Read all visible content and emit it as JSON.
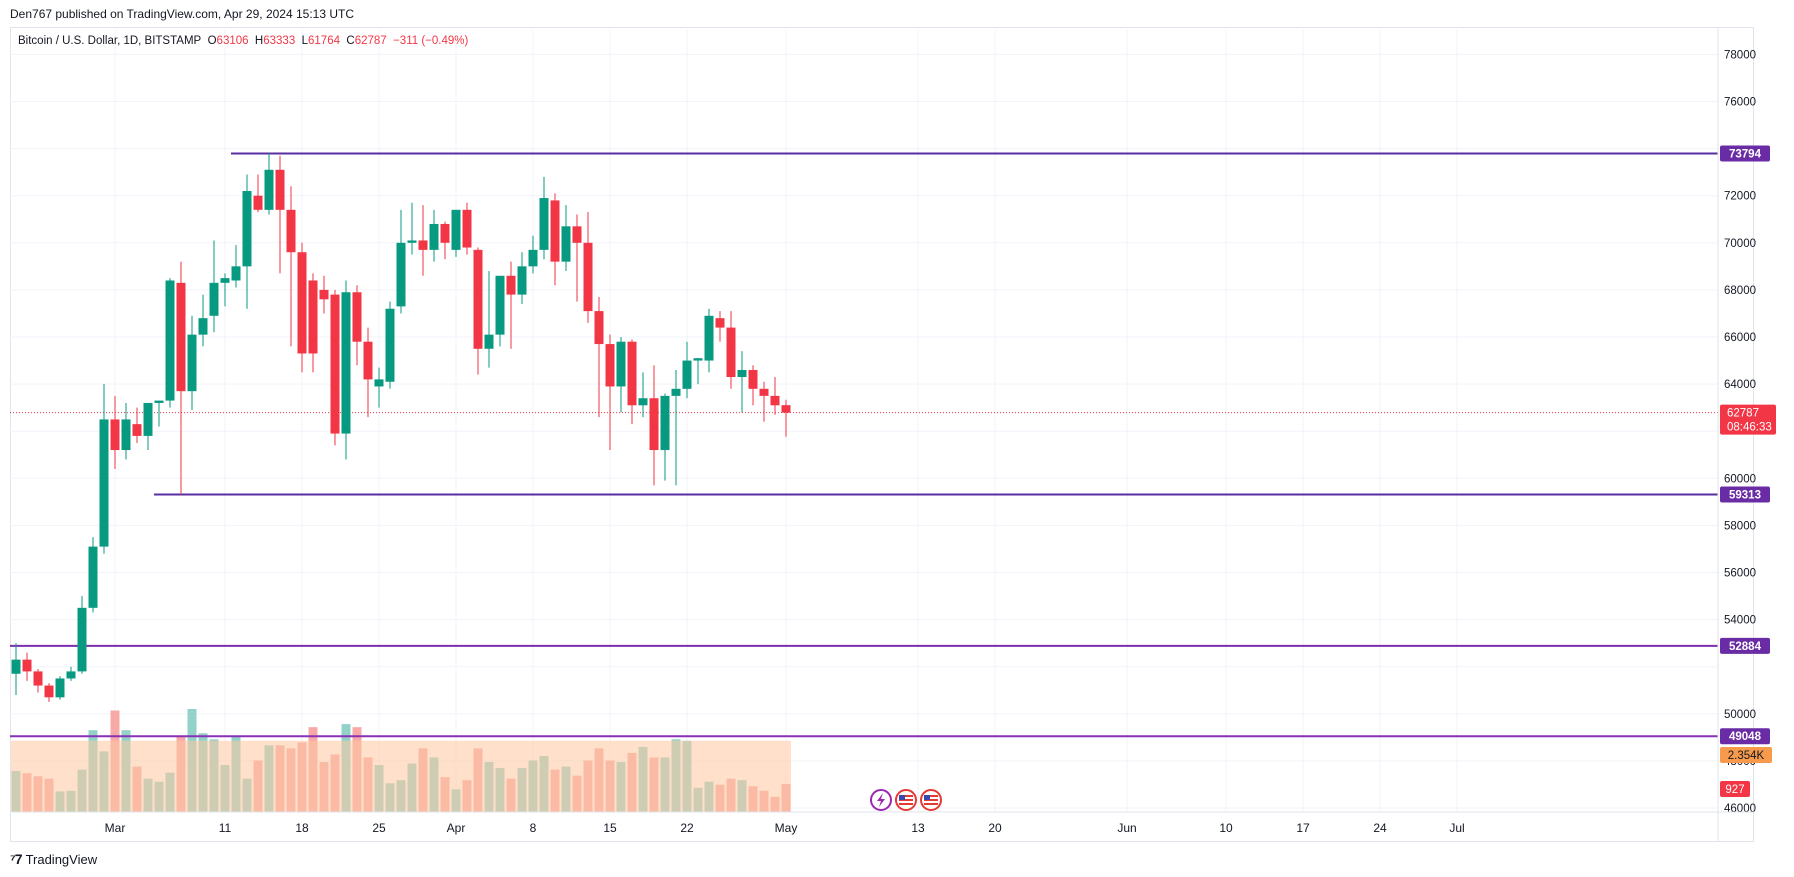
{
  "publish_line": "Den767 published on TradingView.com, Apr 29, 2024 15:13 UTC",
  "legend": {
    "symbol": "Bitcoin / U.S. Dollar, 1D, BITSTAMP",
    "o_label": "O",
    "o": "63106",
    "h_label": "H",
    "h": "63333",
    "l_label": "L",
    "l": "61764",
    "c_label": "C",
    "c": "62787",
    "change": "−311 (−0.49%)"
  },
  "colors": {
    "up": "#089981",
    "down": "#f23645",
    "up_volume": "#92d2c9",
    "down_volume": "#f7a9a7",
    "level_line": "#7e2bbf",
    "level_label_bg": "#6a2ca4",
    "volume_ma": "#ffc8a0",
    "grid": "#f0f3fa",
    "axis_text": "#131722"
  },
  "footer": {
    "brand": "TradingView"
  },
  "chart_data": {
    "type": "candlestick",
    "symbol": "Bitcoin / U.S. Dollar",
    "interval": "1D",
    "exchange": "BITSTAMP",
    "y_ticks": [
      46000,
      48000,
      50000,
      52000,
      54000,
      56000,
      58000,
      60000,
      62000,
      64000,
      66000,
      68000,
      70000,
      72000,
      74000,
      76000,
      78000
    ],
    "y_tick_labels": [
      "46000",
      "48000",
      "50000",
      "",
      "54000",
      "56000",
      "58000",
      "60000",
      "",
      "64000",
      "66000",
      "68000",
      "70000",
      "72000",
      "",
      "76000",
      "78000"
    ],
    "ylim": [
      45800,
      78800
    ],
    "x_ticks": [
      {
        "label": "Mar",
        "i": 9
      },
      {
        "label": "11",
        "i": 19
      },
      {
        "label": "18",
        "i": 26
      },
      {
        "label": "25",
        "i": 33
      },
      {
        "label": "Apr",
        "i": 40
      },
      {
        "label": "8",
        "i": 47
      },
      {
        "label": "15",
        "i": 54
      },
      {
        "label": "22",
        "i": 61
      },
      {
        "label": "May",
        "i": 70
      },
      {
        "label": "13",
        "i": 82
      },
      {
        "label": "20",
        "i": 89
      },
      {
        "label": "Jun",
        "i": 101
      },
      {
        "label": "10",
        "i": 110
      },
      {
        "label": "17",
        "i": 117
      },
      {
        "label": "24",
        "i": 124
      },
      {
        "label": "Jul",
        "i": 131
      }
    ],
    "candles": [
      {
        "o": 51700,
        "h": 53000,
        "l": 50800,
        "c": 52300
      },
      {
        "o": 52300,
        "h": 52600,
        "l": 51400,
        "c": 51800
      },
      {
        "o": 51800,
        "h": 51900,
        "l": 50900,
        "c": 51200
      },
      {
        "o": 51200,
        "h": 51300,
        "l": 50500,
        "c": 50700
      },
      {
        "o": 50700,
        "h": 51600,
        "l": 50600,
        "c": 51500
      },
      {
        "o": 51500,
        "h": 52000,
        "l": 51400,
        "c": 51800
      },
      {
        "o": 51800,
        "h": 55000,
        "l": 51700,
        "c": 54500
      },
      {
        "o": 54500,
        "h": 57500,
        "l": 54300,
        "c": 57100
      },
      {
        "o": 57100,
        "h": 64000,
        "l": 56800,
        "c": 62500
      },
      {
        "o": 62500,
        "h": 63500,
        "l": 60400,
        "c": 61200
      },
      {
        "o": 61200,
        "h": 63200,
        "l": 60800,
        "c": 62500
      },
      {
        "o": 62300,
        "h": 63000,
        "l": 61500,
        "c": 61800
      },
      {
        "o": 61800,
        "h": 63000,
        "l": 61200,
        "c": 63200
      },
      {
        "o": 63200,
        "h": 63300,
        "l": 62200,
        "c": 63300
      },
      {
        "o": 63300,
        "h": 68500,
        "l": 63000,
        "c": 68400
      },
      {
        "o": 68300,
        "h": 69200,
        "l": 59313,
        "c": 63700
      },
      {
        "o": 63700,
        "h": 66900,
        "l": 62900,
        "c": 66100
      },
      {
        "o": 66100,
        "h": 67800,
        "l": 65600,
        "c": 66800
      },
      {
        "o": 66900,
        "h": 70100,
        "l": 66200,
        "c": 68300
      },
      {
        "o": 68300,
        "h": 68700,
        "l": 67300,
        "c": 68500
      },
      {
        "o": 68400,
        "h": 69900,
        "l": 68100,
        "c": 69000
      },
      {
        "o": 69000,
        "h": 72900,
        "l": 67200,
        "c": 72200
      },
      {
        "o": 72000,
        "h": 72900,
        "l": 71300,
        "c": 71400
      },
      {
        "o": 71400,
        "h": 73794,
        "l": 71200,
        "c": 73100
      },
      {
        "o": 73100,
        "h": 73700,
        "l": 68700,
        "c": 71400
      },
      {
        "o": 71400,
        "h": 72400,
        "l": 65600,
        "c": 69600
      },
      {
        "o": 69600,
        "h": 70000,
        "l": 64500,
        "c": 65300
      },
      {
        "o": 68400,
        "h": 68700,
        "l": 64500,
        "c": 65300
      },
      {
        "o": 68000,
        "h": 68600,
        "l": 67000,
        "c": 67600
      },
      {
        "o": 67800,
        "h": 68000,
        "l": 61400,
        "c": 61900
      },
      {
        "o": 61900,
        "h": 68400,
        "l": 60800,
        "c": 67900
      },
      {
        "o": 67900,
        "h": 68200,
        "l": 64800,
        "c": 65800
      },
      {
        "o": 65800,
        "h": 66400,
        "l": 62600,
        "c": 64200
      },
      {
        "o": 63900,
        "h": 64700,
        "l": 63000,
        "c": 64200
      },
      {
        "o": 64100,
        "h": 67500,
        "l": 63800,
        "c": 67200
      },
      {
        "o": 67300,
        "h": 71400,
        "l": 67000,
        "c": 70000
      },
      {
        "o": 70000,
        "h": 71700,
        "l": 69500,
        "c": 70100
      },
      {
        "o": 70100,
        "h": 71600,
        "l": 68600,
        "c": 69700
      },
      {
        "o": 69700,
        "h": 71400,
        "l": 69200,
        "c": 70800
      },
      {
        "o": 70800,
        "h": 70900,
        "l": 69300,
        "c": 70000
      },
      {
        "o": 69700,
        "h": 71400,
        "l": 69400,
        "c": 71400
      },
      {
        "o": 71400,
        "h": 71700,
        "l": 69500,
        "c": 69800
      },
      {
        "o": 69700,
        "h": 69800,
        "l": 64400,
        "c": 65500
      },
      {
        "o": 65500,
        "h": 68800,
        "l": 64700,
        "c": 66100
      },
      {
        "o": 66100,
        "h": 68300,
        "l": 65600,
        "c": 68600
      },
      {
        "o": 68600,
        "h": 69200,
        "l": 65500,
        "c": 67800
      },
      {
        "o": 67800,
        "h": 69600,
        "l": 67400,
        "c": 69000
      },
      {
        "o": 69000,
        "h": 70300,
        "l": 68700,
        "c": 69700
      },
      {
        "o": 69700,
        "h": 72800,
        "l": 69300,
        "c": 71900
      },
      {
        "o": 71800,
        "h": 72100,
        "l": 68200,
        "c": 69200
      },
      {
        "o": 69200,
        "h": 71600,
        "l": 68800,
        "c": 70700
      },
      {
        "o": 70700,
        "h": 71200,
        "l": 67500,
        "c": 70000
      },
      {
        "o": 70000,
        "h": 71300,
        "l": 66600,
        "c": 67100
      },
      {
        "o": 67100,
        "h": 67700,
        "l": 62600,
        "c": 65700
      },
      {
        "o": 65700,
        "h": 66100,
        "l": 61200,
        "c": 63900
      },
      {
        "o": 63900,
        "h": 66000,
        "l": 62800,
        "c": 65800
      },
      {
        "o": 65800,
        "h": 65900,
        "l": 62300,
        "c": 63100
      },
      {
        "o": 63100,
        "h": 64500,
        "l": 62600,
        "c": 63400
      },
      {
        "o": 63400,
        "h": 64800,
        "l": 59700,
        "c": 61200
      },
      {
        "o": 61200,
        "h": 63600,
        "l": 59900,
        "c": 63500
      },
      {
        "o": 63500,
        "h": 64600,
        "l": 59700,
        "c": 63800
      },
      {
        "o": 63800,
        "h": 65800,
        "l": 63400,
        "c": 65000
      },
      {
        "o": 65000,
        "h": 65100,
        "l": 64000,
        "c": 65100
      },
      {
        "o": 65000,
        "h": 67200,
        "l": 64500,
        "c": 66900
      },
      {
        "o": 66800,
        "h": 67100,
        "l": 65800,
        "c": 66400
      },
      {
        "o": 66400,
        "h": 67100,
        "l": 63800,
        "c": 64300
      },
      {
        "o": 64300,
        "h": 65400,
        "l": 62800,
        "c": 64600
      },
      {
        "o": 64600,
        "h": 64800,
        "l": 63100,
        "c": 63800
      },
      {
        "o": 63800,
        "h": 64100,
        "l": 62400,
        "c": 63500
      },
      {
        "o": 63500,
        "h": 64300,
        "l": 62700,
        "c": 63100
      },
      {
        "o": 63106,
        "h": 63333,
        "l": 61764,
        "c": 62787
      }
    ],
    "volume_axis_max": 4200,
    "volume": [
      1350,
      1280,
      1180,
      1100,
      680,
      700,
      1400,
      2700,
      2000,
      3350,
      2700,
      1500,
      1100,
      1000,
      1300,
      2500,
      3400,
      2600,
      2400,
      1550,
      2500,
      1100,
      1700,
      2200,
      2200,
      2100,
      2300,
      2800,
      1650,
      1900,
      2900,
      2800,
      1800,
      1550,
      950,
      1050,
      1600,
      2100,
      1800,
      1150,
      750,
      1050,
      2100,
      1650,
      1450,
      1100,
      1450,
      1700,
      1850,
      1400,
      1500,
      1200,
      1700,
      2100,
      1700,
      1650,
      1950,
      2150,
      1800,
      1800,
      2400,
      2350,
      800,
      1000,
      900,
      1100,
      1050,
      850,
      700,
      500,
      927
    ],
    "volume_ma_value": "2.354K",
    "current_volume": "927",
    "current_price": "62787",
    "countdown": "08:46:33",
    "levels": [
      {
        "price": 73794,
        "label": "73794",
        "color": "#5a2da0",
        "start_i": 20
      },
      {
        "price": 59313,
        "label": "59313",
        "color": "#5a2da0",
        "start_i": 13
      },
      {
        "price": 52884,
        "label": "52884",
        "color": "#7b2fae",
        "start_i": 0
      },
      {
        "price": 49048,
        "label": "49048",
        "color": "#8a30b5",
        "start_i": 0
      }
    ]
  }
}
